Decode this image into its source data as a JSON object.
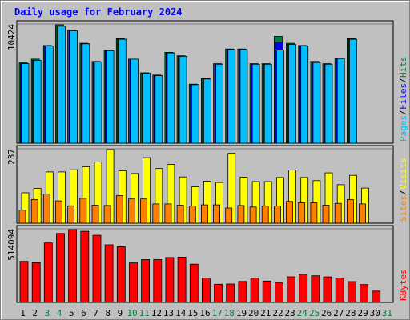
{
  "title": "Daily usage for February 2024",
  "chart_data": [
    {
      "type": "bar",
      "name": "pages-files-hits",
      "y_max_label": "10424",
      "ylim": [
        0,
        10424
      ],
      "side_labels": [
        "Pages",
        "Files",
        "Hits"
      ],
      "side_colors": [
        "#00c0ff",
        "#0000ff",
        "#008040"
      ],
      "categories": [
        "1",
        "2",
        "3",
        "4",
        "5",
        "6",
        "7",
        "8",
        "9",
        "10",
        "11",
        "12",
        "13",
        "14",
        "15",
        "16",
        "17",
        "18",
        "19",
        "20",
        "21",
        "22",
        "23",
        "24",
        "25",
        "26",
        "27",
        "28",
        "29",
        "30",
        "31"
      ],
      "series": [
        {
          "name": "Hits",
          "color": "#008040",
          "values": [
            7100,
            7400,
            8600,
            10424,
            9950,
            8800,
            7200,
            8200,
            9200,
            7400,
            6200,
            6000,
            8000,
            7700,
            5200,
            5700,
            7000,
            8300,
            8300,
            7000,
            7000,
            9400,
            8800,
            8600,
            7200,
            7000,
            7500,
            9200,
            null,
            null,
            null
          ]
        },
        {
          "name": "Files",
          "color": "#0000ff",
          "values": [
            7000,
            7300,
            8550,
            10300,
            9900,
            8750,
            7150,
            8150,
            9150,
            7400,
            6150,
            5950,
            7950,
            7650,
            5150,
            5650,
            6950,
            8250,
            8250,
            6950,
            6950,
            8900,
            8700,
            8550,
            7100,
            6950,
            7450,
            9150,
            null,
            null,
            null
          ]
        },
        {
          "name": "Pages",
          "color": "#00c0ff",
          "values": [
            7000,
            7300,
            8550,
            10300,
            9900,
            8750,
            7150,
            8150,
            9150,
            7400,
            6150,
            5950,
            7950,
            7650,
            5150,
            5650,
            6950,
            8250,
            8250,
            6950,
            6950,
            8200,
            8700,
            8550,
            7100,
            6950,
            7450,
            9150,
            null,
            null,
            null
          ]
        }
      ]
    },
    {
      "type": "bar",
      "name": "visits-sites",
      "y_max_label": "237",
      "ylim": [
        0,
        237
      ],
      "side_labels": [
        "Sites",
        "Visits"
      ],
      "side_colors": [
        "#ff8000",
        "#ffff00"
      ],
      "categories": [
        "1",
        "2",
        "3",
        "4",
        "5",
        "6",
        "7",
        "8",
        "9",
        "10",
        "11",
        "12",
        "13",
        "14",
        "15",
        "16",
        "17",
        "18",
        "19",
        "20",
        "21",
        "22",
        "23",
        "24",
        "25",
        "26",
        "27",
        "28",
        "29",
        "30",
        "31"
      ],
      "series": [
        {
          "name": "Visits",
          "color": "#ffff00",
          "values": [
            98,
            112,
            165,
            165,
            172,
            182,
            197,
            237,
            169,
            160,
            211,
            176,
            189,
            149,
            117,
            135,
            131,
            225,
            148,
            134,
            134,
            147,
            171,
            147,
            137,
            162,
            124,
            154,
            113,
            null,
            null
          ]
        },
        {
          "name": "Sites",
          "color": "#ff8000",
          "values": [
            42,
            76,
            94,
            72,
            56,
            80,
            58,
            57,
            89,
            78,
            78,
            62,
            62,
            58,
            55,
            59,
            59,
            49,
            57,
            52,
            55,
            55,
            70,
            66,
            66,
            58,
            64,
            76,
            62,
            null,
            null
          ]
        }
      ]
    },
    {
      "type": "bar",
      "name": "kbytes",
      "y_max_label": "514094",
      "ylim": [
        0,
        514094
      ],
      "side_labels": [
        "KBytes"
      ],
      "side_colors": [
        "#ff0000"
      ],
      "categories": [
        "1",
        "2",
        "3",
        "4",
        "5",
        "6",
        "7",
        "8",
        "9",
        "10",
        "11",
        "12",
        "13",
        "14",
        "15",
        "16",
        "17",
        "18",
        "19",
        "20",
        "21",
        "22",
        "23",
        "24",
        "25",
        "26",
        "27",
        "28",
        "29",
        "30",
        "31"
      ],
      "series": [
        {
          "name": "KBytes",
          "color": "#ff0000",
          "values": [
            290000,
            280000,
            420000,
            487000,
            514094,
            502000,
            474000,
            407000,
            393000,
            279000,
            302000,
            302000,
            317000,
            320000,
            270000,
            172000,
            128000,
            130000,
            148000,
            172000,
            151000,
            138000,
            181000,
            199000,
            188000,
            180000,
            172000,
            147000,
            126000,
            80000,
            null
          ]
        }
      ]
    }
  ],
  "x_labels": {
    "days": [
      "1",
      "2",
      "3",
      "4",
      "5",
      "6",
      "7",
      "8",
      "9",
      "10",
      "11",
      "12",
      "13",
      "14",
      "15",
      "16",
      "17",
      "18",
      "19",
      "20",
      "21",
      "22",
      "23",
      "24",
      "25",
      "26",
      "27",
      "28",
      "29",
      "30",
      "31"
    ],
    "weekend_days": [
      "3",
      "4",
      "10",
      "11",
      "17",
      "18",
      "24",
      "25",
      "31"
    ],
    "weekday_color": "#000000",
    "weekend_color": "#008040"
  }
}
